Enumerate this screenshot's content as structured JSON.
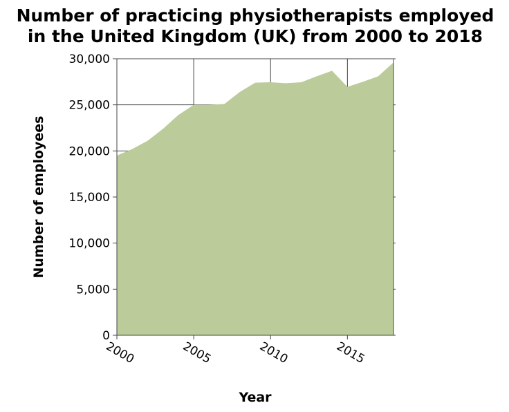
{
  "chart_data": {
    "type": "area",
    "title": "Number of practicing physiotherapists employed in the United Kingdom (UK) from 2000 to 2018",
    "title_lines": [
      "Number of practicing physiotherapists employed",
      "in the United Kingdom (UK) from 2000 to 2018"
    ],
    "xlabel": "Year",
    "ylabel": "Number of employees",
    "xlim": [
      2000,
      2018
    ],
    "ylim": [
      0,
      30000
    ],
    "x_ticks": [
      2000,
      2005,
      2010,
      2015
    ],
    "x_tick_labels": [
      "2000",
      "2005",
      "2010",
      "2015"
    ],
    "y_ticks": [
      0,
      5000,
      10000,
      15000,
      20000,
      25000,
      30000
    ],
    "y_tick_labels": [
      "0",
      "5,000",
      "10,000",
      "15,000",
      "20,000",
      "25,000",
      "30,000"
    ],
    "grid": true,
    "fill_color": "#bccb9a",
    "x": [
      2000,
      2001,
      2002,
      2003,
      2004,
      2005,
      2006,
      2007,
      2008,
      2009,
      2010,
      2011,
      2012,
      2013,
      2014,
      2015,
      2016,
      2017,
      2018
    ],
    "values": [
      19500,
      20200,
      21100,
      22400,
      23900,
      25000,
      25000,
      25100,
      26400,
      27400,
      27450,
      27350,
      27450,
      28100,
      28700,
      26950,
      27500,
      28100,
      29600
    ]
  }
}
